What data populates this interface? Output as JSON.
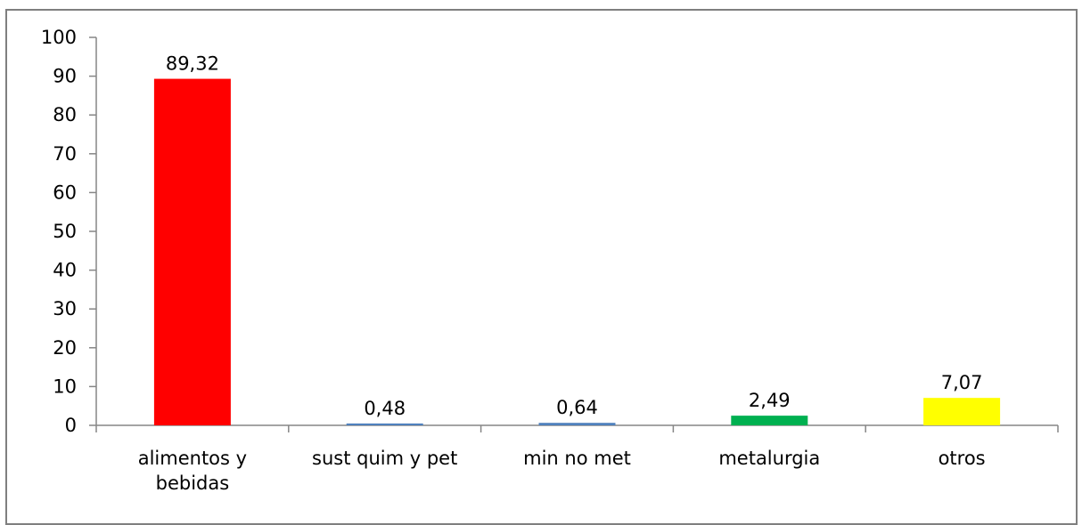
{
  "chart_data": {
    "type": "bar",
    "title": "",
    "xlabel": "",
    "ylabel": "",
    "ylim": [
      0,
      100
    ],
    "yticks": [
      0,
      10,
      20,
      30,
      40,
      50,
      60,
      70,
      80,
      90,
      100
    ],
    "grid": false,
    "legend": "none",
    "categories": [
      [
        "alimentos y",
        "bebidas"
      ],
      [
        "sust quim y pet"
      ],
      [
        "min no met"
      ],
      [
        "metalurgia"
      ],
      [
        "otros"
      ]
    ],
    "values": [
      89.32,
      0.48,
      0.64,
      2.49,
      7.07
    ],
    "data_labels": [
      "89,32",
      "0,48",
      "0,64",
      "2,49",
      "7,07"
    ],
    "colors": [
      "#ff0000",
      "#4f81bd",
      "#4f81bd",
      "#00b050",
      "#ffff00"
    ]
  }
}
